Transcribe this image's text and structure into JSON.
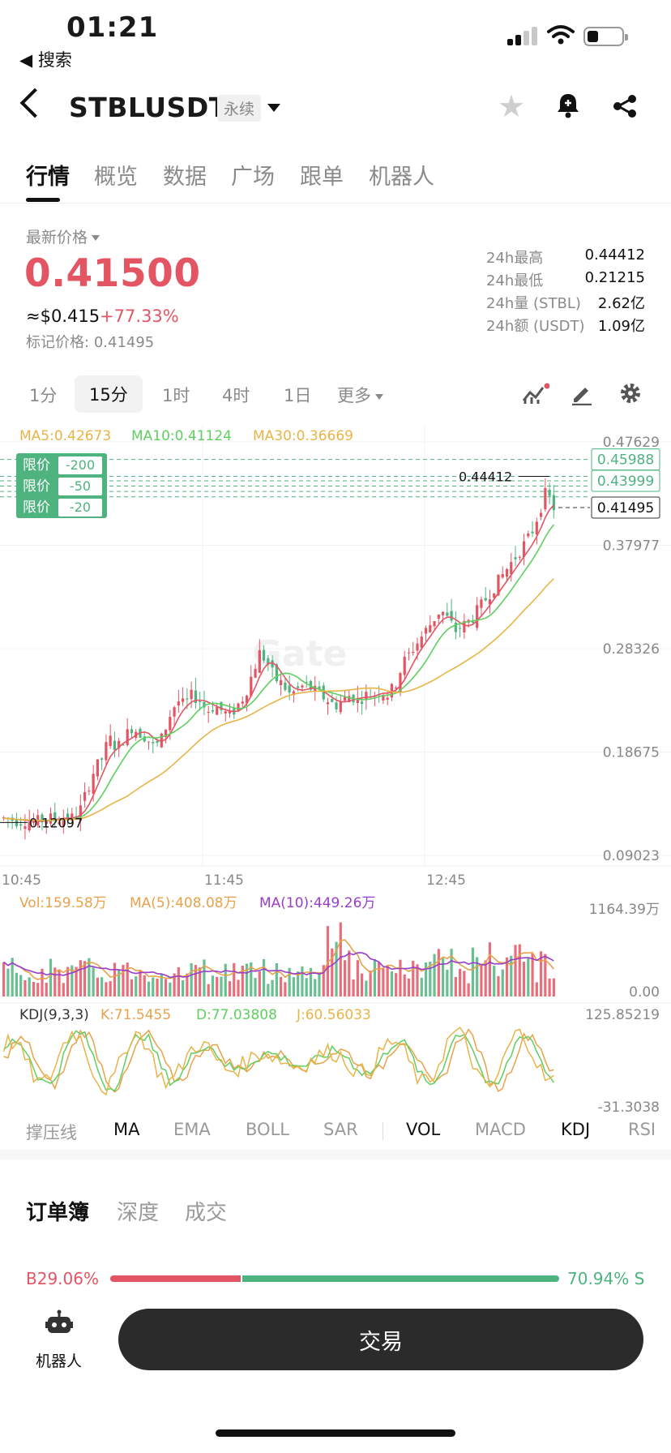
{
  "status_bar": {
    "time": "01:21",
    "back_app": "◀ 搜索"
  },
  "header": {
    "pair": "STBLUSDT",
    "contract_type": "永续"
  },
  "top_tabs": [
    {
      "label": "行情",
      "active": true
    },
    {
      "label": "概览",
      "active": false
    },
    {
      "label": "数据",
      "active": false
    },
    {
      "label": "广场",
      "active": false
    },
    {
      "label": "跟单",
      "active": false
    },
    {
      "label": "机器人",
      "active": false
    }
  ],
  "price": {
    "label": "最新价格",
    "last": "0.41500",
    "usd": "≈$0.415",
    "change": "+77.33%",
    "mark_label": "标记价格:",
    "mark_value": "0.41495"
  },
  "stats": [
    {
      "label": "24h最高",
      "value": "0.44412"
    },
    {
      "label": "24h最低",
      "value": "0.21215"
    },
    {
      "label": "24h量 (STBL)",
      "value": "2.62亿"
    },
    {
      "label": "24h额 (USDT)",
      "value": "1.09亿"
    }
  ],
  "intervals": [
    {
      "label": "1分",
      "active": false
    },
    {
      "label": "15分",
      "active": true
    },
    {
      "label": "1时",
      "active": false
    },
    {
      "label": "4时",
      "active": false
    },
    {
      "label": "1日",
      "active": false
    },
    {
      "label": "更多",
      "active": false
    }
  ],
  "chart_data": {
    "type": "candlestick",
    "watermark": "Gate",
    "ma_labels": [
      {
        "text": "MA5:0.42673",
        "color": "#e8b447"
      },
      {
        "text": "MA10:0.41124",
        "color": "#5fcf60"
      },
      {
        "text": "MA30:0.36669",
        "color": "#e8b447"
      }
    ],
    "y_axis_labels": [
      "0.47629",
      "0.37977",
      "0.28326",
      "0.18675",
      "0.09023"
    ],
    "y_axis_values": [
      0.47629,
      0.37977,
      0.28326,
      0.18675,
      0.09023
    ],
    "price_tags": [
      "0.45988",
      "0.43999",
      "0.41495"
    ],
    "limit_orders": [
      {
        "label": "限价",
        "qty": "-200"
      },
      {
        "label": "限价",
        "qty": "-50"
      },
      {
        "label": "限价",
        "qty": "-20"
      }
    ],
    "high_label": "0.44412",
    "low_label": "0.12097",
    "x_labels": [
      "10:45",
      "11:45",
      "12:45"
    ],
    "close_series": [
      0.125,
      0.124,
      0.122,
      0.123,
      0.121,
      0.123,
      0.125,
      0.124,
      0.126,
      0.125,
      0.13,
      0.15,
      0.17,
      0.18,
      0.2,
      0.19,
      0.2,
      0.21,
      0.205,
      0.2,
      0.19,
      0.2,
      0.22,
      0.235,
      0.23,
      0.24,
      0.235,
      0.225,
      0.23,
      0.225,
      0.22,
      0.23,
      0.24,
      0.26,
      0.28,
      0.27,
      0.255,
      0.25,
      0.24,
      0.245,
      0.25,
      0.245,
      0.24,
      0.235,
      0.23,
      0.235,
      0.24,
      0.235,
      0.24,
      0.24,
      0.245,
      0.24,
      0.25,
      0.27,
      0.28,
      0.29,
      0.3,
      0.31,
      0.32,
      0.31,
      0.3,
      0.305,
      0.31,
      0.32,
      0.33,
      0.34,
      0.35,
      0.36,
      0.37,
      0.38,
      0.39,
      0.41,
      0.43,
      0.415
    ],
    "volume": {
      "labels": [
        {
          "text": "Vol:159.58万",
          "color": "#e8a24a"
        },
        {
          "text": "MA(5):408.08万",
          "color": "#e8a24a"
        },
        {
          "text": "MA(10):449.26万",
          "color": "#9a3dc8"
        }
      ],
      "y_labels": [
        "1164.39万",
        "0.00"
      ]
    },
    "kdj": {
      "labels": [
        {
          "text": "KDJ(9,3,3)",
          "color": "#333333"
        },
        {
          "text": "K:71.5455",
          "color": "#e8a24a"
        },
        {
          "text": "D:77.03808",
          "color": "#5fcf60"
        },
        {
          "text": "J:60.56033",
          "color": "#e8b447"
        }
      ],
      "y_labels": [
        "125.85219",
        "-31.3038"
      ]
    }
  },
  "indicator_tabs": [
    {
      "label": "撑压线",
      "on": false
    },
    {
      "label": "MA",
      "on": true
    },
    {
      "label": "EMA",
      "on": false
    },
    {
      "label": "BOLL",
      "on": false
    },
    {
      "label": "SAR",
      "on": false
    },
    {
      "label": "VOL",
      "on": true
    },
    {
      "label": "MACD",
      "on": false
    },
    {
      "label": "KDJ",
      "on": true
    },
    {
      "label": "RSI",
      "on": false
    }
  ],
  "orderbook": {
    "tabs": [
      {
        "label": "订单簿",
        "active": true
      },
      {
        "label": "深度",
        "active": false
      },
      {
        "label": "成交",
        "active": false
      }
    ],
    "buy_ratio": "29.06%",
    "sell_ratio": "70.94%",
    "buy_letter": "B",
    "sell_letter": "S",
    "buy_fraction": 0.2906
  },
  "bottom": {
    "robot_label": "机器人",
    "trade_label": "交易"
  },
  "colors": {
    "up": "#e35563",
    "down": "#4fb37f",
    "accent": "#e35563"
  }
}
